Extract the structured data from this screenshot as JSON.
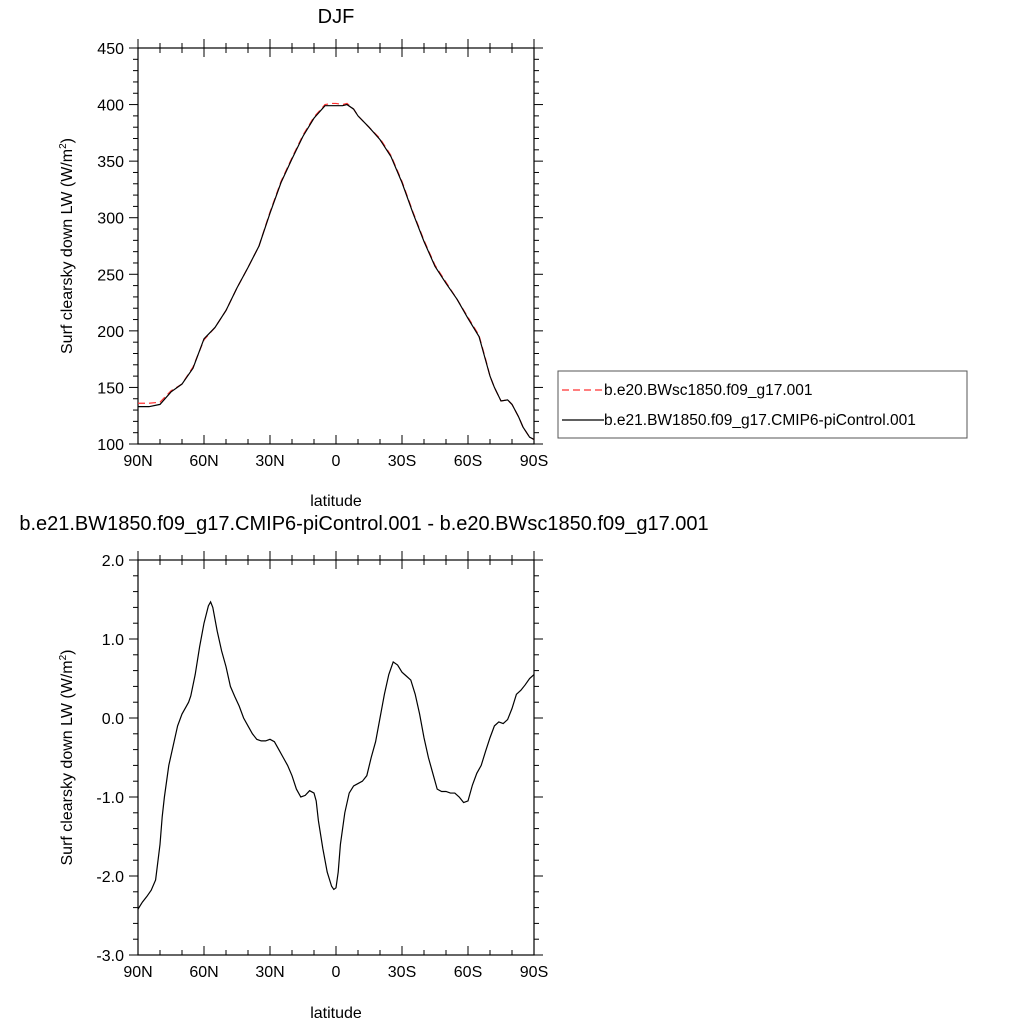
{
  "chart_data": [
    {
      "type": "line",
      "title": "DJF",
      "xlabel": "latitude",
      "ylabel": "Surf clearsky down LW (W/m",
      "ylabel_sup": "2",
      "ylabel_close": ")",
      "xlim": [
        90,
        -90
      ],
      "ylim": [
        100,
        450
      ],
      "x_ticks": [
        {
          "value": 90,
          "label": "90N"
        },
        {
          "value": 60,
          "label": "60N"
        },
        {
          "value": 30,
          "label": "30N"
        },
        {
          "value": 0,
          "label": "0"
        },
        {
          "value": -30,
          "label": "30S"
        },
        {
          "value": -60,
          "label": "60S"
        },
        {
          "value": -90,
          "label": "90S"
        }
      ],
      "y_ticks": [
        {
          "value": 100,
          "label": "100"
        },
        {
          "value": 150,
          "label": "150"
        },
        {
          "value": 200,
          "label": "200"
        },
        {
          "value": 250,
          "label": "250"
        },
        {
          "value": 300,
          "label": "300"
        },
        {
          "value": 350,
          "label": "350"
        },
        {
          "value": 400,
          "label": "400"
        },
        {
          "value": 450,
          "label": "450"
        }
      ],
      "legend_position": "right",
      "series": [
        {
          "name": "b.e20.BWsc1850.f09_g17.001",
          "color": "#ff3030",
          "dash": "dashed",
          "x": [
            90,
            85,
            80,
            75,
            70,
            65,
            60,
            55,
            50,
            45,
            40,
            35,
            30,
            25,
            20,
            15,
            10,
            5,
            2,
            0,
            -3,
            -5,
            -8,
            -10,
            -15,
            -20,
            -25,
            -30,
            -35,
            -40,
            -45,
            -50,
            -55,
            -60,
            -65,
            -68,
            -70,
            -72,
            -75,
            -78,
            -80,
            -83,
            -85,
            -88,
            -90
          ],
          "y": [
            136,
            136,
            137,
            147,
            153,
            168,
            192,
            203,
            218,
            238,
            256,
            275,
            305,
            332,
            353,
            373,
            389,
            400,
            401,
            401,
            400,
            401,
            396,
            390,
            380,
            370,
            355,
            332,
            305,
            280,
            258,
            243,
            228,
            212,
            196,
            175,
            160,
            150,
            138,
            139,
            135,
            124,
            115,
            106,
            104
          ]
        },
        {
          "name": "b.e21.BW1850.f09_g17.CMIP6-piControl.001",
          "color": "#000000",
          "dash": "solid",
          "x": [
            90,
            85,
            80,
            75,
            70,
            65,
            60,
            55,
            50,
            45,
            40,
            35,
            30,
            25,
            20,
            15,
            10,
            5,
            2,
            0,
            -3,
            -5,
            -8,
            -10,
            -15,
            -20,
            -25,
            -30,
            -35,
            -40,
            -45,
            -50,
            -55,
            -60,
            -65,
            -68,
            -70,
            -72,
            -75,
            -78,
            -80,
            -83,
            -85,
            -88,
            -90
          ],
          "y": [
            133,
            133,
            135,
            146,
            153,
            167,
            193,
            203,
            218,
            238,
            256,
            275,
            304,
            331,
            352,
            372,
            388,
            399,
            399,
            399,
            399,
            400,
            396,
            390,
            380,
            369,
            354,
            331,
            304,
            279,
            257,
            242,
            228,
            211,
            195,
            174,
            160,
            150,
            138,
            139,
            135,
            124,
            115,
            106,
            104
          ]
        }
      ]
    },
    {
      "type": "line",
      "title": "b.e21.BW1850.f09_g17.CMIP6-piControl.001 - b.e20.BWsc1850.f09_g17.001",
      "xlabel": "latitude",
      "ylabel": "Surf clearsky down LW (W/m",
      "ylabel_sup": "2",
      "ylabel_close": ")",
      "xlim": [
        90,
        -90
      ],
      "ylim": [
        -3.0,
        2.0
      ],
      "x_ticks": [
        {
          "value": 90,
          "label": "90N"
        },
        {
          "value": 60,
          "label": "60N"
        },
        {
          "value": 30,
          "label": "30N"
        },
        {
          "value": 0,
          "label": "0"
        },
        {
          "value": -30,
          "label": "30S"
        },
        {
          "value": -60,
          "label": "60S"
        },
        {
          "value": -90,
          "label": "90S"
        }
      ],
      "y_ticks": [
        {
          "value": -3.0,
          "label": "-3.0"
        },
        {
          "value": -2.0,
          "label": "-2.0"
        },
        {
          "value": -1.0,
          "label": "-1.0"
        },
        {
          "value": 0.0,
          "label": "0.0"
        },
        {
          "value": 1.0,
          "label": "1.0"
        },
        {
          "value": 2.0,
          "label": "2.0"
        }
      ],
      "series": [
        {
          "color": "#000000",
          "dash": "solid",
          "x": [
            90,
            88,
            86,
            84,
            82,
            80,
            79,
            78,
            76,
            74,
            72,
            70,
            68,
            67,
            66,
            64,
            62,
            60,
            58,
            57,
            56,
            54,
            52,
            50,
            48,
            46,
            44,
            42,
            40,
            38,
            36,
            34,
            32,
            30,
            28,
            26,
            24,
            22,
            20,
            18,
            16,
            14,
            12,
            10,
            9,
            8,
            6,
            4,
            2,
            1,
            0,
            -1,
            -2,
            -4,
            -6,
            -8,
            -10,
            -12,
            -14,
            -16,
            -18,
            -20,
            -22,
            -24,
            -26,
            -28,
            -30,
            -32,
            -34,
            -36,
            -38,
            -40,
            -42,
            -44,
            -46,
            -48,
            -50,
            -52,
            -54,
            -56,
            -58,
            -60,
            -62,
            -64,
            -66,
            -68,
            -70,
            -72,
            -74,
            -76,
            -78,
            -80,
            -82,
            -84,
            -86,
            -88,
            -90
          ],
          "y": [
            -2.42,
            -2.33,
            -2.26,
            -2.18,
            -2.05,
            -1.6,
            -1.25,
            -1.0,
            -0.6,
            -0.35,
            -0.1,
            0.05,
            0.15,
            0.2,
            0.28,
            0.55,
            0.9,
            1.2,
            1.42,
            1.47,
            1.4,
            1.1,
            0.85,
            0.65,
            0.4,
            0.27,
            0.15,
            0.0,
            -0.1,
            -0.2,
            -0.27,
            -0.29,
            -0.29,
            -0.27,
            -0.3,
            -0.4,
            -0.5,
            -0.6,
            -0.73,
            -0.9,
            -1.0,
            -0.98,
            -0.92,
            -0.95,
            -1.05,
            -1.3,
            -1.65,
            -1.95,
            -2.13,
            -2.17,
            -2.15,
            -1.95,
            -1.6,
            -1.2,
            -0.95,
            -0.86,
            -0.83,
            -0.8,
            -0.73,
            -0.5,
            -0.3,
            0.0,
            0.3,
            0.55,
            0.71,
            0.67,
            0.58,
            0.53,
            0.48,
            0.3,
            0.05,
            -0.25,
            -0.5,
            -0.7,
            -0.9,
            -0.93,
            -0.93,
            -0.95,
            -0.95,
            -1.0,
            -1.07,
            -1.05,
            -0.85,
            -0.7,
            -0.6,
            -0.42,
            -0.25,
            -0.1,
            -0.05,
            -0.07,
            -0.02,
            0.12,
            0.3,
            0.35,
            0.42,
            0.5,
            0.55
          ]
        }
      ]
    }
  ]
}
